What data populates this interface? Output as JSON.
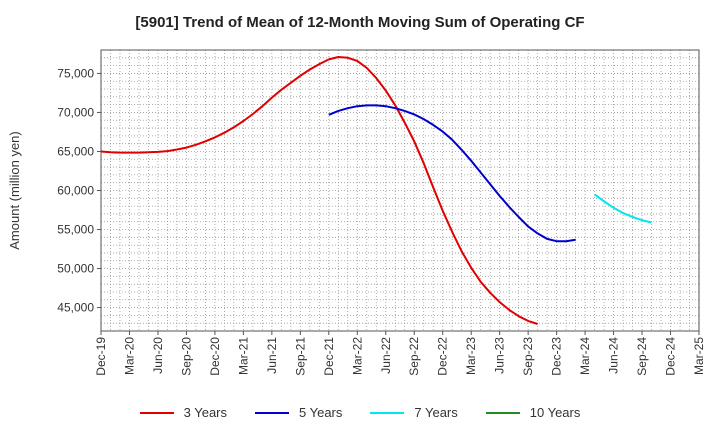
{
  "chart_data": {
    "type": "line",
    "title": "[5901]  Trend of Mean of 12-Month Moving Sum of Operating CF",
    "xlabel": "",
    "ylabel": "Amount (million yen)",
    "ylim": [
      42000,
      78000
    ],
    "yticks": [
      45000,
      50000,
      55000,
      60000,
      65000,
      70000,
      75000
    ],
    "ytick_labels": [
      "45,000",
      "50,000",
      "55,000",
      "60,000",
      "65,000",
      "70,000",
      "75,000"
    ],
    "xtick_labels": [
      "Dec-19",
      "Mar-20",
      "Jun-20",
      "Sep-20",
      "Dec-20",
      "Mar-21",
      "Jun-21",
      "Sep-21",
      "Dec-21",
      "Mar-22",
      "Jun-22",
      "Sep-22",
      "Dec-22",
      "Mar-23",
      "Jun-23",
      "Sep-23",
      "Dec-23",
      "Mar-24",
      "Jun-24",
      "Sep-24",
      "Dec-24",
      "Mar-25"
    ],
    "series": [
      {
        "name": "3 Years",
        "color": "#e00000",
        "start_index": 0,
        "values": [
          65000,
          64900,
          64850,
          64850,
          64850,
          64900,
          64950,
          65050,
          65250,
          65500,
          65850,
          66300,
          66800,
          67400,
          68100,
          68900,
          69800,
          70800,
          71900,
          72900,
          73800,
          74700,
          75500,
          76200,
          76800,
          77100,
          77000,
          76600,
          75700,
          74400,
          72800,
          70900,
          68700,
          66300,
          63500,
          60400,
          57400,
          54700,
          52200,
          50100,
          48300,
          46900,
          45700,
          44700,
          43900,
          43300,
          42900
        ]
      },
      {
        "name": "5 Years",
        "color": "#0000cc",
        "start_index": 24,
        "values": [
          69700,
          70200,
          70550,
          70800,
          70900,
          70900,
          70800,
          70550,
          70200,
          69750,
          69150,
          68400,
          67550,
          66500,
          65200,
          63800,
          62300,
          60800,
          59300,
          57900,
          56600,
          55400,
          54500,
          53800,
          53500,
          53500,
          53700
        ]
      },
      {
        "name": "7 Years",
        "color": "#00e5ee",
        "start_index": 52,
        "values": [
          59500,
          58600,
          57800,
          57100,
          56600,
          56200,
          55900
        ]
      },
      {
        "name": "10 Years",
        "color": "#228b22",
        "start_index": 0,
        "values": []
      }
    ]
  }
}
